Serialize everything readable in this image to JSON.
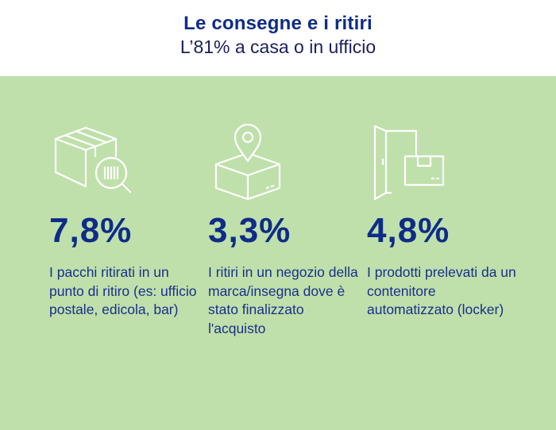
{
  "header": {
    "title": "Le consegne e i ritiri",
    "subtitle": "L’81% a casa o in ufficio"
  },
  "stats": [
    {
      "value": "7,8%",
      "description": "I pacchi ritirati in un punto di ritiro (es: ufficio postale, edicola, bar)",
      "icon": "box-barcode-icon"
    },
    {
      "value": "3,3%",
      "description": "I ritiri in un negozio della marca/insegna dove è stato finalizzato l'acquisto",
      "icon": "box-location-pin-icon"
    },
    {
      "value": "4,8%",
      "description": "I prodotti prelevati da un contenitore automatizzato (locker)",
      "icon": "locker-box-icon"
    }
  ],
  "colors": {
    "panel_bg": "#c0e0ab",
    "title": "#0e2c87",
    "icon_stroke": "#ffffff"
  }
}
